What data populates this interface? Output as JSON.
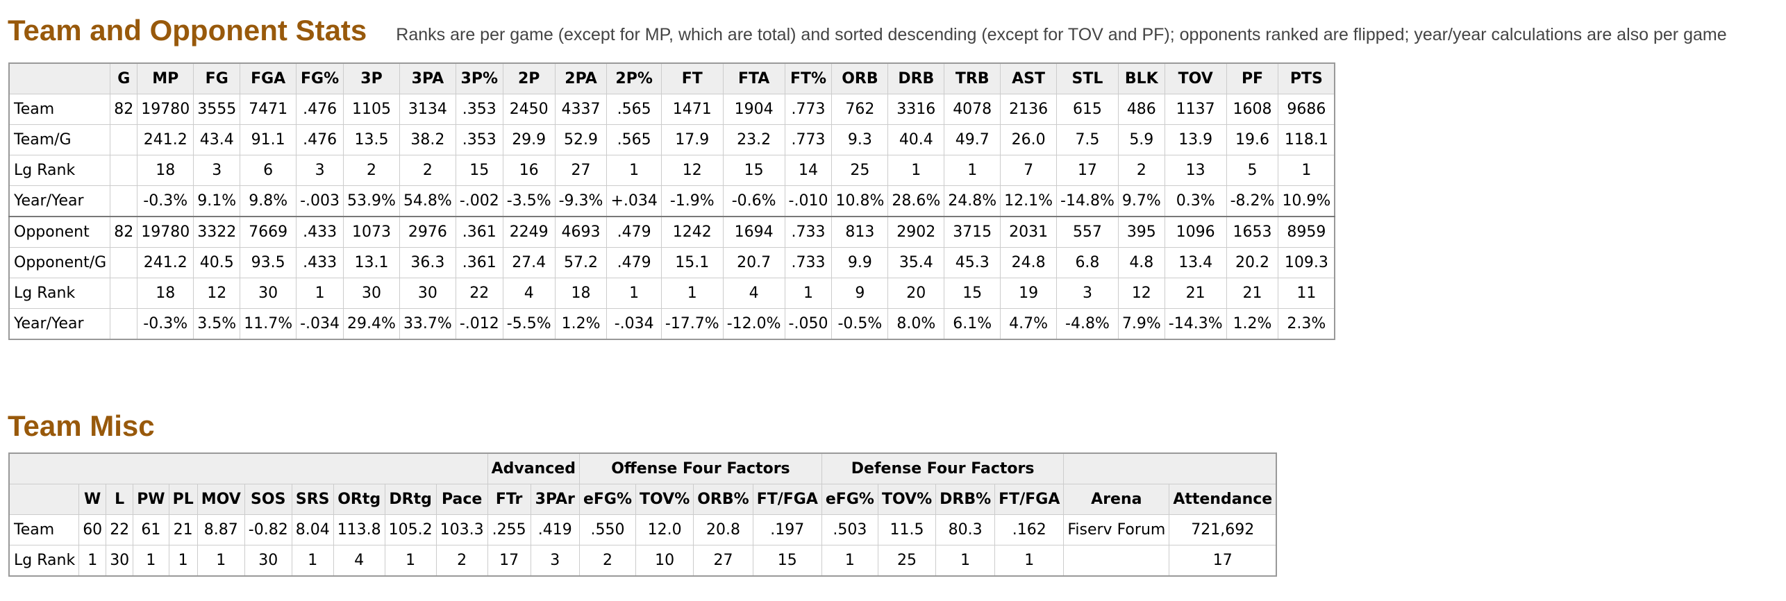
{
  "team_opp": {
    "title": "Team and Opponent Stats",
    "note": "Ranks are per game (except for MP, which are total) and sorted descending (except for TOV and PF); opponents ranked are flipped; year/year calculations are also per game",
    "headers": [
      "",
      "G",
      "MP",
      "FG",
      "FGA",
      "FG%",
      "3P",
      "3PA",
      "3P%",
      "2P",
      "2PA",
      "2P%",
      "FT",
      "FTA",
      "FT%",
      "ORB",
      "DRB",
      "TRB",
      "AST",
      "STL",
      "BLK",
      "TOV",
      "PF",
      "PTS"
    ],
    "rows": [
      [
        "Team",
        "82",
        "19780",
        "3555",
        "7471",
        ".476",
        "1105",
        "3134",
        ".353",
        "2450",
        "4337",
        ".565",
        "1471",
        "1904",
        ".773",
        "762",
        "3316",
        "4078",
        "2136",
        "615",
        "486",
        "1137",
        "1608",
        "9686"
      ],
      [
        "Team/G",
        "",
        "241.2",
        "43.4",
        "91.1",
        ".476",
        "13.5",
        "38.2",
        ".353",
        "29.9",
        "52.9",
        ".565",
        "17.9",
        "23.2",
        ".773",
        "9.3",
        "40.4",
        "49.7",
        "26.0",
        "7.5",
        "5.9",
        "13.9",
        "19.6",
        "118.1"
      ],
      [
        "Lg Rank",
        "",
        "18",
        "3",
        "6",
        "3",
        "2",
        "2",
        "15",
        "16",
        "27",
        "1",
        "12",
        "15",
        "14",
        "25",
        "1",
        "1",
        "7",
        "17",
        "2",
        "13",
        "5",
        "1"
      ],
      [
        "Year/Year",
        "",
        "-0.3%",
        "9.1%",
        "9.8%",
        "-.003",
        "53.9%",
        "54.8%",
        "-.002",
        "-3.5%",
        "-9.3%",
        "+.034",
        "-1.9%",
        "-0.6%",
        "-.010",
        "10.8%",
        "28.6%",
        "24.8%",
        "12.1%",
        "-14.8%",
        "9.7%",
        "0.3%",
        "-8.2%",
        "10.9%"
      ],
      [
        "Opponent",
        "82",
        "19780",
        "3322",
        "7669",
        ".433",
        "1073",
        "2976",
        ".361",
        "2249",
        "4693",
        ".479",
        "1242",
        "1694",
        ".733",
        "813",
        "2902",
        "3715",
        "2031",
        "557",
        "395",
        "1096",
        "1653",
        "8959"
      ],
      [
        "Opponent/G",
        "",
        "241.2",
        "40.5",
        "93.5",
        ".433",
        "13.1",
        "36.3",
        ".361",
        "27.4",
        "57.2",
        ".479",
        "15.1",
        "20.7",
        ".733",
        "9.9",
        "35.4",
        "45.3",
        "24.8",
        "6.8",
        "4.8",
        "13.4",
        "20.2",
        "109.3"
      ],
      [
        "Lg Rank",
        "",
        "18",
        "12",
        "30",
        "1",
        "30",
        "30",
        "22",
        "4",
        "18",
        "1",
        "1",
        "4",
        "1",
        "9",
        "20",
        "15",
        "19",
        "3",
        "12",
        "21",
        "21",
        "11"
      ],
      [
        "Year/Year",
        "",
        "-0.3%",
        "3.5%",
        "11.7%",
        "-.034",
        "29.4%",
        "33.7%",
        "-.012",
        "-5.5%",
        "1.2%",
        "-.034",
        "-17.7%",
        "-12.0%",
        "-.050",
        "-0.5%",
        "8.0%",
        "6.1%",
        "4.7%",
        "-4.8%",
        "7.9%",
        "-14.3%",
        "1.2%",
        "2.3%"
      ]
    ]
  },
  "misc": {
    "title": "Team Misc",
    "over_headers": [
      "Advanced",
      "Offense Four Factors",
      "Defense Four Factors"
    ],
    "headers": [
      "",
      "W",
      "L",
      "PW",
      "PL",
      "MOV",
      "SOS",
      "SRS",
      "ORtg",
      "DRtg",
      "Pace",
      "FTr",
      "3PAr",
      "eFG%",
      "TOV%",
      "ORB%",
      "FT/FGA",
      "eFG%",
      "TOV%",
      "DRB%",
      "FT/FGA",
      "Arena",
      "Attendance"
    ],
    "rows": [
      [
        "Team",
        "60",
        "22",
        "61",
        "21",
        "8.87",
        "-0.82",
        "8.04",
        "113.8",
        "105.2",
        "103.3",
        ".255",
        ".419",
        ".550",
        "12.0",
        "20.8",
        ".197",
        ".503",
        "11.5",
        "80.3",
        ".162",
        "Fiserv Forum",
        "721,692"
      ],
      [
        "Lg Rank",
        "1",
        "30",
        "1",
        "1",
        "1",
        "30",
        "1",
        "4",
        "1",
        "2",
        "17",
        "3",
        "2",
        "10",
        "27",
        "15",
        "1",
        "25",
        "1",
        "1",
        "",
        "17"
      ]
    ]
  },
  "colors": {
    "title": "#98590b",
    "header_bg": "#eeeeee",
    "border": "#cccccc"
  }
}
